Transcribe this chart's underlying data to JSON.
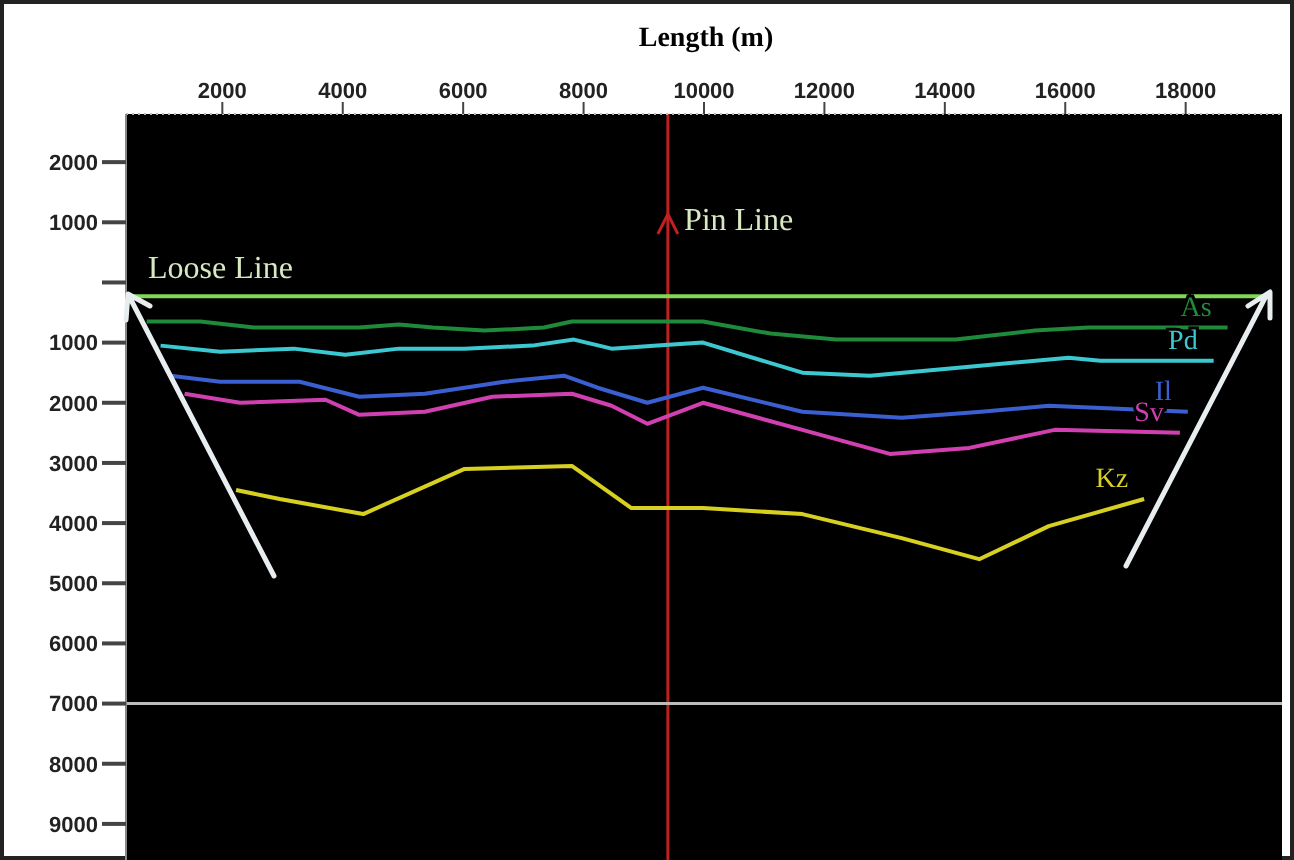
{
  "chart_data": {
    "type": "line",
    "xlabel": "Length (m)",
    "xlim": [
      400,
      19600
    ],
    "xticks": [
      2000,
      4000,
      6000,
      8000,
      10000,
      12000,
      14000,
      16000,
      18000
    ],
    "ylim": [
      -9600,
      2800
    ],
    "yticks": [
      {
        "value": 2000,
        "label": "2000"
      },
      {
        "value": 1000,
        "label": "1000"
      },
      {
        "value": 0,
        "label": null
      },
      {
        "value": -1000,
        "label": "1000"
      },
      {
        "value": -2000,
        "label": "2000"
      },
      {
        "value": -3000,
        "label": "3000"
      },
      {
        "value": -4000,
        "label": "4000"
      },
      {
        "value": -5000,
        "label": "5000"
      },
      {
        "value": -6000,
        "label": "6000"
      },
      {
        "value": -7000,
        "label": "7000"
      },
      {
        "value": -8000,
        "label": "8000"
      },
      {
        "value": -9000,
        "label": "9000"
      }
    ],
    "grid": false,
    "legend": false,
    "marker": "none",
    "line_style": "solid",
    "series": [
      {
        "color": "#7ed957",
        "x": [
          413,
          19290
        ],
        "values": [
          -230,
          -230
        ]
      },
      {
        "name": "As",
        "color": "#1f8a3a",
        "x": [
          743,
          1634,
          2525,
          4274,
          4934,
          5495,
          6353,
          7343,
          7805,
          9224,
          9983,
          11106,
          12195,
          14175,
          15495,
          16386,
          18696
        ],
        "values": [
          -650,
          -650,
          -750,
          -750,
          -700,
          -750,
          -800,
          -750,
          -650,
          -650,
          -650,
          -850,
          -950,
          -950,
          -800,
          -750,
          -750
        ]
      },
      {
        "name": "Pd",
        "color": "#3cc8d0",
        "x": [
          974,
          1964,
          3185,
          4043,
          4934,
          6023,
          7145,
          7838,
          8465,
          9224,
          9983,
          11634,
          12756,
          14406,
          16056,
          16584,
          18465
        ],
        "values": [
          -1050,
          -1150,
          -1100,
          -1200,
          -1100,
          -1100,
          -1050,
          -950,
          -1100,
          -1050,
          -1000,
          -1500,
          -1550,
          -1400,
          -1250,
          -1300,
          -1300
        ]
      },
      {
        "name": "Il",
        "color": "#3a5fd0",
        "x": [
          1139,
          1964,
          3284,
          4274,
          5363,
          6683,
          7673,
          8234,
          9059,
          9983,
          11634,
          13284,
          14604,
          15726,
          18036
        ],
        "values": [
          -1550,
          -1650,
          -1650,
          -1900,
          -1850,
          -1650,
          -1550,
          -1750,
          -2000,
          -1750,
          -2150,
          -2250,
          -2150,
          -2050,
          -2150
        ]
      },
      {
        "name": "Sv",
        "color": "#d040b0",
        "x": [
          1373,
          2294,
          3713,
          4274,
          5363,
          6485,
          7805,
          8465,
          9059,
          9983,
          11634,
          13086,
          14406,
          15825,
          17904
        ],
        "values": [
          -1850,
          -2000,
          -1950,
          -2200,
          -2150,
          -1900,
          -1850,
          -2050,
          -2350,
          -2000,
          -2450,
          -2850,
          -2750,
          -2450,
          -2500
        ]
      },
      {
        "name": "Kz",
        "color": "#d8d020",
        "x": [
          2228,
          2954,
          4340,
          6023,
          7805,
          8795,
          9983,
          11634,
          13284,
          14571,
          15726,
          17310
        ],
        "values": [
          -3450,
          -3600,
          -3850,
          -3100,
          -3050,
          -3750,
          -3750,
          -3850,
          -4250,
          -4600,
          -4050,
          -3600
        ]
      }
    ],
    "ref_lines": [
      {
        "axis": "x",
        "value": 9400,
        "label": "Pin Line",
        "color": "#c02020"
      },
      {
        "axis": "y",
        "value": -7000,
        "color": "#bbbbbb"
      }
    ],
    "annotations": [
      "Loose Line"
    ]
  }
}
